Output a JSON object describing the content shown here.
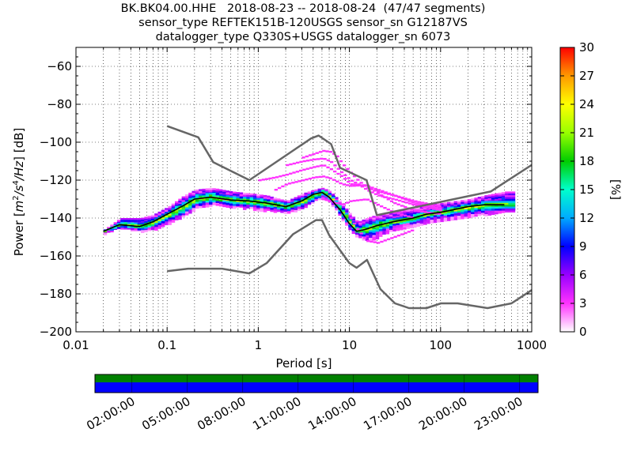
{
  "window": {
    "title": "BK.BK04.00.HHE PPSD"
  },
  "chart_data": {
    "type": "heatmap",
    "title_lines": [
      "BK.BK04.00.HHE   2018-08-23 -- 2018-08-24  (47/47 segments)",
      "sensor_type REFTEK151B-120USGS sensor_sn G12187VS",
      "datalogger_type Q330S+USGS datalogger_sn 6073"
    ],
    "xlabel": "Period [s]",
    "ylabel": "Power [m²/s⁴/Hz] [dB]",
    "x_scale": "log",
    "xlim": [
      0.01,
      1000
    ],
    "ylim": [
      -200,
      -50
    ],
    "x_ticks": [
      0.01,
      0.1,
      1,
      10,
      100,
      1000
    ],
    "x_tick_labels": [
      "0.01",
      "0.1",
      "1",
      "10",
      "100",
      "1000"
    ],
    "y_ticks": [
      -200,
      -180,
      -160,
      -140,
      -120,
      -100,
      -80,
      -60
    ],
    "y_tick_labels": [
      "−200",
      "−180",
      "−160",
      "−140",
      "−120",
      "−100",
      "−80",
      "−60"
    ],
    "grid": "dotted",
    "colorbar": {
      "label": "[%]",
      "range": [
        0,
        30
      ],
      "ticks": [
        0,
        3,
        6,
        9,
        12,
        15,
        18,
        21,
        24,
        27,
        30
      ],
      "colormap": [
        "#ffffff",
        "#ff33ff",
        "#9900ff",
        "#0000ff",
        "#00aaff",
        "#00ffcc",
        "#00cc00",
        "#99ff00",
        "#ffff00",
        "#ff9900",
        "#ff0000"
      ]
    },
    "noise_models": [
      {
        "name": "New High Noise Model",
        "color": "#666666",
        "x": [
          0.1,
          0.22,
          0.32,
          0.8,
          3.8,
          4.6,
          6.3,
          7.9,
          15.4,
          20,
          354.8,
          1000
        ],
        "y": [
          -91.5,
          -97.4,
          -110.5,
          -120,
          -98,
          -96.5,
          -101,
          -113.5,
          -120,
          -138.5,
          -126,
          -112
        ]
      },
      {
        "name": "New Low Noise Model",
        "color": "#666666",
        "x": [
          0.1,
          0.17,
          0.4,
          0.8,
          1.24,
          2.4,
          4.3,
          5,
          6,
          10,
          12,
          15.6,
          21.9,
          31.6,
          45,
          70,
          101,
          154,
          328,
          600,
          1000
        ],
        "y": [
          -168,
          -166.7,
          -166.7,
          -169.2,
          -163.7,
          -148.6,
          -141.1,
          -141.1,
          -149,
          -163.8,
          -166.2,
          -162.1,
          -177.5,
          -185,
          -187.5,
          -187.5,
          -185,
          -185,
          -187.5,
          -185,
          -178
        ]
      }
    ],
    "mode": {
      "name": "mode",
      "color": "#000000",
      "x": [
        0.02,
        0.03,
        0.05,
        0.07,
        0.1,
        0.15,
        0.2,
        0.3,
        0.5,
        0.8,
        1.2,
        2,
        3,
        4,
        5,
        6,
        8,
        10,
        12,
        15,
        20,
        30,
        50,
        70,
        100,
        200,
        300,
        500
      ],
      "y": [
        -147,
        -143.5,
        -144.5,
        -142,
        -138,
        -133.5,
        -130,
        -129,
        -130.5,
        -131,
        -132,
        -134,
        -131,
        -127.5,
        -126.5,
        -129,
        -136,
        -143,
        -147,
        -146,
        -144,
        -142,
        -140,
        -138,
        -137,
        -134,
        -133,
        -133
      ]
    },
    "ppsd_bands": [
      {
        "x": [
          0.02,
          0.03,
          0.05,
          0.07,
          0.1,
          0.15,
          0.2,
          0.3,
          0.5,
          0.8,
          1.2,
          2,
          3,
          4,
          5,
          6,
          8,
          10,
          12,
          15,
          20,
          30,
          50,
          70,
          100,
          200,
          300,
          500,
          650
        ],
        "lo": [
          -148,
          -145,
          -147,
          -146,
          -143,
          -139,
          -135,
          -133,
          -134,
          -135,
          -136,
          -137,
          -135,
          -131,
          -129,
          -132,
          -140,
          -147,
          -150,
          -152,
          -150,
          -146,
          -144,
          -142,
          -141,
          -139,
          -138,
          -136,
          -136
        ],
        "hi": [
          -146,
          -140,
          -140,
          -138,
          -134,
          -128,
          -125,
          -124,
          -126,
          -127,
          -128,
          -131,
          -127,
          -125,
          -124,
          -126,
          -132,
          -138,
          -142,
          -140,
          -138,
          -137,
          -135,
          -133,
          -132,
          -130,
          -128,
          -126,
          -126
        ],
        "percent": 10
      },
      {
        "x": [
          0.02,
          0.03,
          0.05,
          0.07,
          0.1,
          0.15,
          0.2,
          0.3,
          0.5,
          0.8,
          1.2,
          2,
          3,
          4,
          5,
          6,
          8,
          10,
          12,
          15,
          20,
          30,
          50,
          70,
          100,
          200,
          300,
          500,
          650
        ],
        "lo": [
          -147.5,
          -144.5,
          -146,
          -144.5,
          -141,
          -137,
          -133,
          -131.5,
          -133,
          -133.5,
          -134.5,
          -136,
          -133.5,
          -130,
          -128,
          -130.5,
          -138.5,
          -145.5,
          -149,
          -149,
          -147,
          -144,
          -142,
          -140,
          -139,
          -137,
          -136,
          -135,
          -135
        ],
        "hi": [
          -146.5,
          -142,
          -142.5,
          -140,
          -136,
          -131,
          -127.5,
          -126.5,
          -128.5,
          -129,
          -130,
          -132.5,
          -129,
          -126,
          -125,
          -127.5,
          -134,
          -140.5,
          -144.5,
          -143,
          -141,
          -140,
          -138,
          -136,
          -135,
          -132,
          -131,
          -131,
          -131
        ],
        "percent": 18
      }
    ],
    "outlier_curves": [
      {
        "x": [
          3,
          4,
          5,
          6,
          7,
          8,
          10,
          12,
          15,
          20,
          30,
          50,
          100
        ],
        "y": [
          -108,
          -106,
          -104.5,
          -105,
          -107,
          -111,
          -116,
          -120,
          -124,
          -126,
          -128,
          -131,
          -134
        ],
        "percent": 3
      },
      {
        "x": [
          2,
          3,
          4,
          5,
          6,
          8,
          10,
          12,
          15,
          20,
          30,
          50,
          100
        ],
        "y": [
          -112,
          -110,
          -109,
          -108.5,
          -110,
          -116,
          -120,
          -122,
          -125,
          -128,
          -130,
          -133,
          -136
        ],
        "percent": 3
      },
      {
        "x": [
          1,
          1.5,
          2,
          3,
          4,
          5,
          6,
          8,
          10,
          15,
          20,
          30,
          50,
          100
        ],
        "y": [
          -120,
          -118.5,
          -117,
          -114.5,
          -113,
          -112,
          -114,
          -118,
          -122,
          -123,
          -125,
          -128,
          -132,
          -135
        ],
        "percent": 3
      },
      {
        "x": [
          1.5,
          2,
          3,
          4,
          5,
          6,
          8,
          10,
          15,
          20,
          30,
          50,
          100
        ],
        "y": [
          -125,
          -122,
          -120,
          -118.5,
          -118,
          -119,
          -122,
          -123,
          -122.5,
          -127,
          -132,
          -136,
          -138
        ],
        "percent": 3
      },
      {
        "x": [
          5,
          6,
          8,
          10,
          15,
          20,
          30,
          50
        ],
        "y": [
          -130,
          -131,
          -133,
          -131,
          -130,
          -133,
          -137,
          -140
        ],
        "percent": 3
      },
      {
        "x": [
          10,
          12,
          15,
          20,
          30,
          50
        ],
        "y": [
          -140,
          -146,
          -152,
          -153,
          -150,
          -146
        ],
        "percent": 3
      }
    ],
    "timeline": {
      "tick_labels": [
        "02:00:00",
        "05:00:00",
        "08:00:00",
        "11:00:00",
        "14:00:00",
        "17:00:00",
        "20:00:00",
        "23:00:00"
      ],
      "top_bar_color": "#008000",
      "bottom_bar_color": "#0000ff",
      "range_hours": [
        0,
        24
      ],
      "tick_hours": [
        2,
        5,
        8,
        11,
        14,
        17,
        20,
        23
      ]
    }
  }
}
